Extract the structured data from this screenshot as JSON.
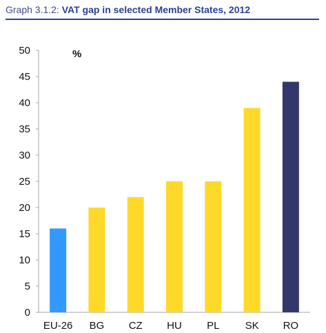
{
  "header": {
    "label": "Graph 3.1.2:",
    "title": "VAT gap in selected Member States, 2012"
  },
  "chart_data": {
    "type": "bar",
    "title": "VAT gap in selected Member States, 2012",
    "xlabel": "",
    "ylabel": "%",
    "ylim": [
      0,
      50
    ],
    "yticks": [
      "0",
      "5",
      "10",
      "15",
      "20",
      "25",
      "30",
      "35",
      "40",
      "45",
      "50"
    ],
    "grid": false,
    "categories": [
      "EU-26",
      "BG",
      "CZ",
      "HU",
      "PL",
      "SK",
      "RO"
    ],
    "values": [
      16,
      20,
      22,
      25,
      25,
      39,
      44
    ],
    "colors": [
      "#3399ff",
      "#ffd929",
      "#ffd929",
      "#ffd929",
      "#ffd929",
      "#ffd929",
      "#33386b"
    ]
  }
}
